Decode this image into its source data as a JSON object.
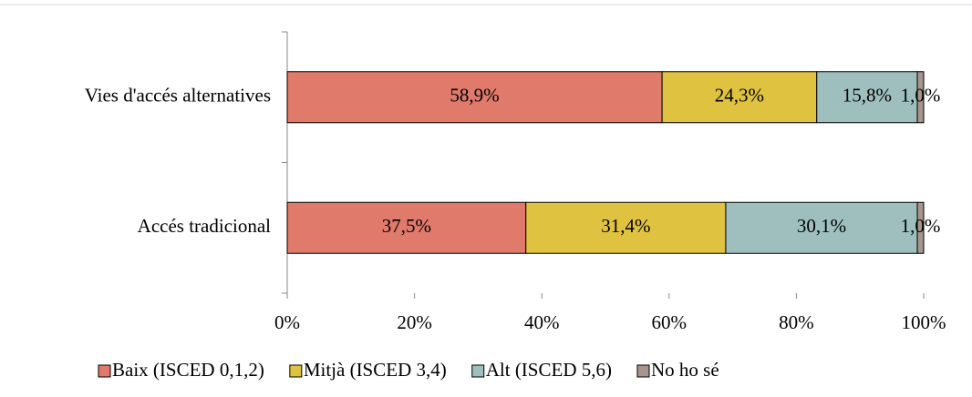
{
  "chart_data": {
    "type": "stacked-bar-horizontal",
    "categories": [
      "Vies d'accés alternatives",
      "Accés tradicional"
    ],
    "series": [
      {
        "name": "Baix (ISCED 0,1,2)",
        "color": "#e07a6a",
        "values": [
          58.9,
          37.5
        ],
        "value_labels": [
          "58,9%",
          "37,5%"
        ]
      },
      {
        "name": "Mitjà (ISCED 3,4)",
        "color": "#dfc23f",
        "values": [
          24.3,
          31.4
        ],
        "value_labels": [
          "24,3%",
          "31,4%"
        ]
      },
      {
        "name": "Alt (ISCED 5,6)",
        "color": "#9ebfbe",
        "values": [
          15.8,
          30.1
        ],
        "value_labels": [
          "15,8%",
          "30,1%"
        ]
      },
      {
        "name": "No ho sé",
        "color": "#a6968e",
        "values": [
          1.0,
          1.0
        ],
        "value_labels": [
          "1,0%",
          "1,0%"
        ]
      }
    ],
    "xlim": [
      0,
      100
    ],
    "xticks": [
      {
        "value": 0,
        "label": "0%"
      },
      {
        "value": 20,
        "label": "20%"
      },
      {
        "value": 40,
        "label": "40%"
      },
      {
        "value": 60,
        "label": "60%"
      },
      {
        "value": 80,
        "label": "80%"
      },
      {
        "value": 100,
        "label": "100%"
      }
    ],
    "legend": "bottom"
  }
}
